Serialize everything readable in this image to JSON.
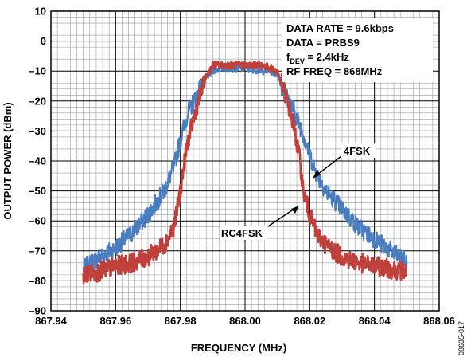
{
  "chart_data": {
    "type": "line",
    "xlabel": "FREQUENCY (MHz)",
    "ylabel": "OUTPUT POWER (dBm)",
    "xlim": [
      867.94,
      868.06
    ],
    "ylim": [
      -90,
      10
    ],
    "x_ticks": [
      "867.94",
      "867.96",
      "867.98",
      "868.00",
      "868.02",
      "868.04",
      "868.06"
    ],
    "y_ticks": [
      "10",
      "0",
      "–10",
      "–20",
      "–30",
      "–40",
      "–50",
      "–60",
      "–70",
      "–80",
      "–90"
    ],
    "grid": true,
    "annotations": [
      "DATA RATE = 9.6kbps",
      "DATA = PRBS9",
      "fDEV = 2.4kHz",
      "RF FREQ = 868MHz"
    ],
    "series": [
      {
        "name": "4FSK",
        "color": "#4a7cc0",
        "x": [
          867.95,
          867.955,
          867.96,
          867.965,
          867.97,
          867.975,
          867.978,
          867.98,
          867.982,
          867.985,
          867.988,
          867.99,
          867.992,
          867.995,
          868.0,
          868.005,
          868.008,
          868.01,
          868.012,
          868.015,
          868.018,
          868.02,
          868.022,
          868.025,
          868.03,
          868.035,
          868.04,
          868.045,
          868.05
        ],
        "y": [
          -76,
          -72,
          -69,
          -64,
          -58,
          -50,
          -42,
          -33,
          -25,
          -18,
          -12,
          -10,
          -9,
          -9,
          -9,
          -10,
          -10,
          -11,
          -17,
          -23,
          -31,
          -38,
          -44,
          -50,
          -56,
          -62,
          -66,
          -70,
          -74
        ]
      },
      {
        "name": "RC4FSK",
        "color": "#c0403c",
        "x": [
          867.95,
          867.955,
          867.96,
          867.965,
          867.97,
          867.975,
          867.978,
          867.98,
          867.982,
          867.985,
          867.988,
          867.99,
          867.992,
          867.995,
          868.0,
          868.005,
          868.008,
          868.01,
          868.012,
          868.015,
          868.017,
          868.018,
          868.02,
          868.022,
          868.025,
          868.03,
          868.035,
          868.04,
          868.045,
          868.05
        ],
        "y": [
          -78,
          -77,
          -75,
          -74,
          -72,
          -68,
          -62,
          -50,
          -35,
          -22,
          -12,
          -8,
          -8,
          -8,
          -8,
          -8,
          -9,
          -10,
          -16,
          -28,
          -40,
          -50,
          -58,
          -64,
          -68,
          -72,
          -74,
          -75,
          -76,
          -77
        ]
      }
    ]
  },
  "figure_id": "08635-017"
}
